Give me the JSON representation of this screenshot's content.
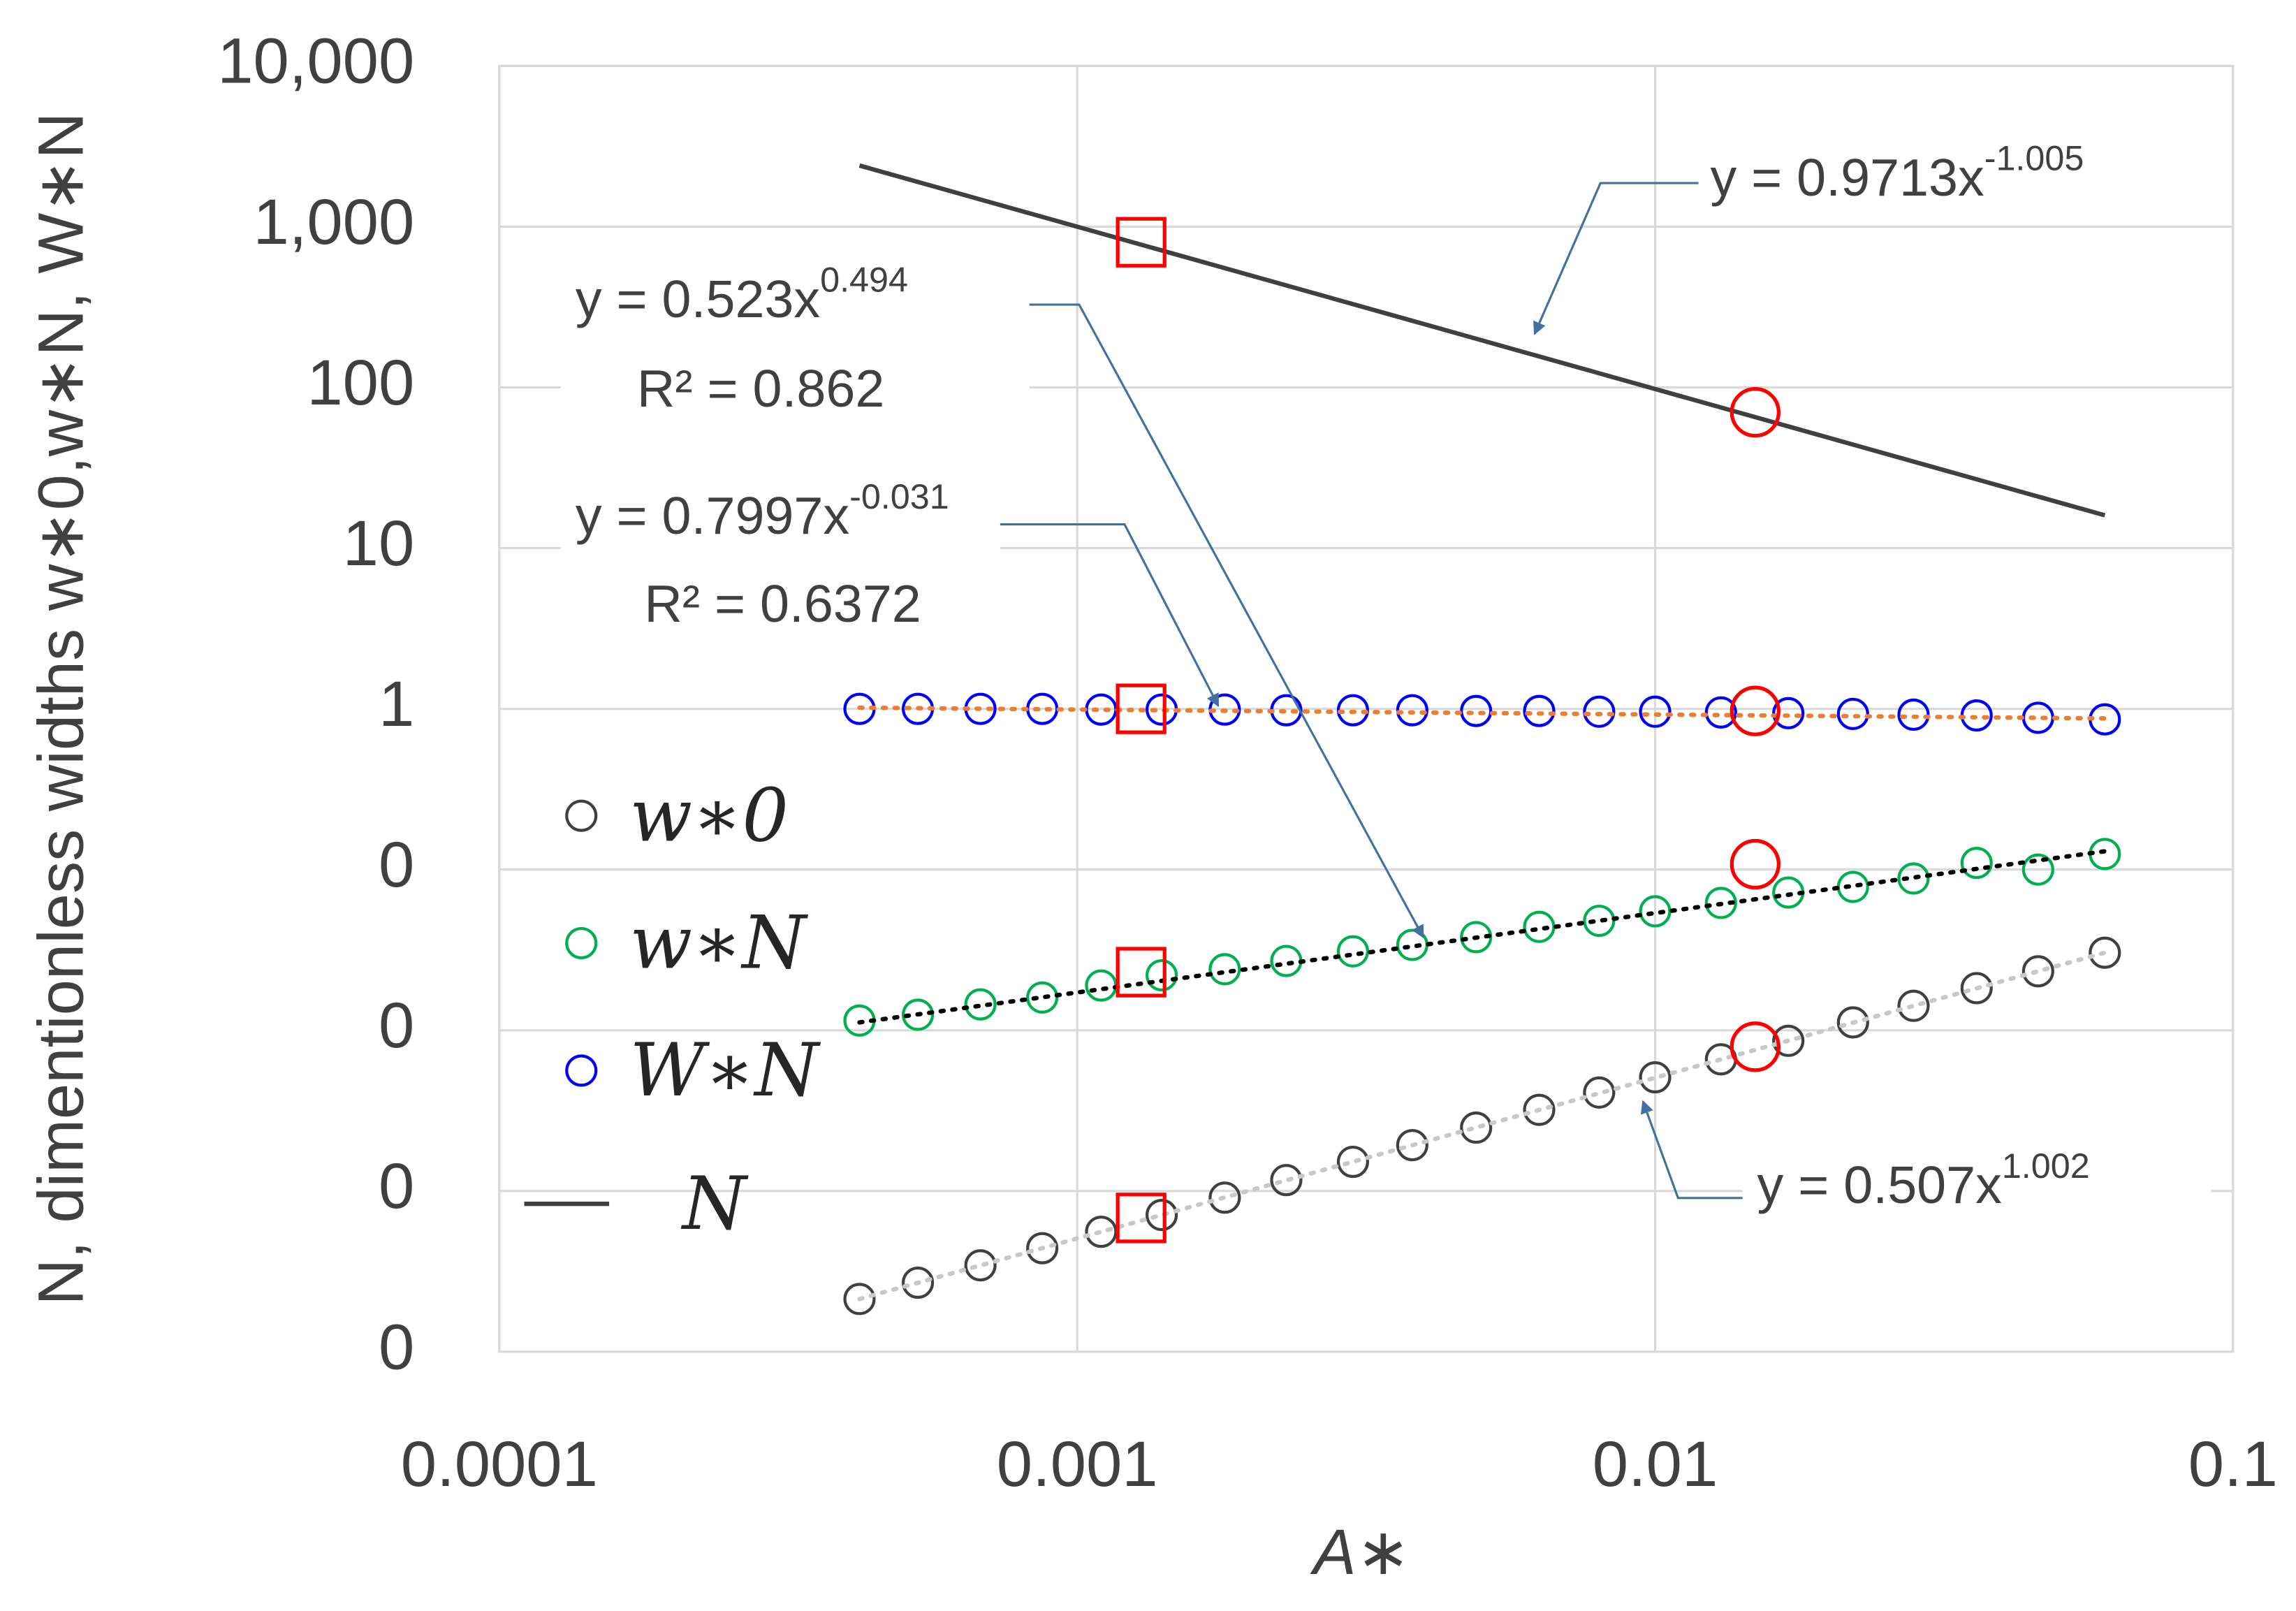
{
  "chart_data": {
    "type": "scatter",
    "x_label": "A∗",
    "y_label": "N, dimentionless widths w∗0,w∗N, W∗N",
    "xscale": "log",
    "yscale": "log",
    "grid": true,
    "legend": "left",
    "xlim": [
      0.0001,
      0.1
    ],
    "xticks": [
      0.0001,
      0.001,
      0.01,
      0.1
    ],
    "ylim": [
      0.0001,
      10000
    ],
    "yticks": [
      {
        "value": 0.0001,
        "label": "0"
      },
      {
        "value": 0.001,
        "label": "0"
      },
      {
        "value": 0.01,
        "label": "0"
      },
      {
        "value": 0.1,
        "label": "0"
      },
      1,
      10,
      100,
      {
        "value": 1000,
        "label": "1,000"
      },
      {
        "value": 10000,
        "label": "10,000"
      }
    ],
    "series": [
      {
        "name": "w∗0",
        "kind": "scatter",
        "color": "#404040",
        "x": [
          0.00042,
          0.00053,
          0.00068,
          0.00087,
          0.0011,
          0.0014,
          0.0018,
          0.0023,
          0.003,
          0.0038,
          0.0049,
          0.0063,
          0.008,
          0.01,
          0.013,
          0.017,
          0.022,
          0.028,
          0.036,
          0.046,
          0.06
        ],
        "values": [
          0.000213,
          0.000269,
          0.000345,
          0.000441,
          0.000558,
          0.00071,
          0.00091,
          0.00117,
          0.00152,
          0.00193,
          0.00248,
          0.0032,
          0.0041,
          0.0051,
          0.0066,
          0.0086,
          0.0112,
          0.0142,
          0.0183,
          0.0233,
          0.0304
        ]
      },
      {
        "name": "w∗N",
        "kind": "scatter",
        "color": "#00b050",
        "x": [
          0.00042,
          0.00053,
          0.00068,
          0.00087,
          0.0011,
          0.0014,
          0.0018,
          0.0023,
          0.003,
          0.0038,
          0.0049,
          0.0063,
          0.008,
          0.01,
          0.013,
          0.017,
          0.022,
          0.028,
          0.036,
          0.046,
          0.06
        ],
        "values": [
          0.0115,
          0.0125,
          0.0145,
          0.016,
          0.019,
          0.022,
          0.024,
          0.027,
          0.031,
          0.034,
          0.038,
          0.044,
          0.048,
          0.055,
          0.062,
          0.072,
          0.078,
          0.088,
          0.11,
          0.1,
          0.125
        ]
      },
      {
        "name": "W∗N",
        "kind": "scatter",
        "color": "#0000ff",
        "x": [
          0.00042,
          0.00053,
          0.00068,
          0.00087,
          0.0011,
          0.0014,
          0.0018,
          0.0023,
          0.003,
          0.0038,
          0.0049,
          0.0063,
          0.008,
          0.01,
          0.013,
          0.017,
          0.022,
          0.028,
          0.036,
          0.046,
          0.06
        ],
        "values": [
          1,
          1,
          1,
          1,
          0.99,
          0.99,
          0.99,
          0.98,
          0.98,
          0.98,
          0.97,
          0.97,
          0.96,
          0.96,
          0.95,
          0.94,
          0.93,
          0.92,
          0.91,
          0.88,
          0.86
        ]
      },
      {
        "name": "N",
        "kind": "line",
        "color": "#404040",
        "x": [
          0.00042,
          0.06
        ],
        "values": [
          2400,
          16
        ]
      }
    ],
    "trendlines": [
      {
        "series": 0,
        "color": "#c8c8c8",
        "x": [
          0.00042,
          0.06
        ],
        "values": [
          0.000213,
          0.0304
        ]
      },
      {
        "series": 1,
        "color": "#000000",
        "x": [
          0.00042,
          0.06
        ],
        "values": [
          0.0112,
          0.13
        ]
      },
      {
        "series": 2,
        "color": "#ed7d31",
        "x": [
          0.00042,
          0.06
        ],
        "values": [
          1.017,
          0.872
        ]
      }
    ],
    "highlights": [
      {
        "shape": "square",
        "color": "#ff0000",
        "x": [
          0.00129,
          0.00129,
          0.00129,
          0.00129
        ],
        "values": [
          800,
          1,
          0.023,
          0.00068
        ]
      },
      {
        "shape": "circle",
        "color": "#ff0000",
        "x": [
          0.0149,
          0.0149,
          0.0149,
          0.0149
        ],
        "values": [
          70,
          0.97,
          0.108,
          0.0079
        ]
      }
    ],
    "annotations": [
      {
        "text": "y = 0.9713x",
        "sup": "-1.005"
      },
      {
        "text": "y = 0.523x",
        "sup": "0.494",
        "r2": "R² = 0.862"
      },
      {
        "text": "y = 0.7997x",
        "sup": "-0.031",
        "r2": "R² = 0.6372"
      },
      {
        "text": "y = 0.507x",
        "sup": "1.002"
      }
    ]
  }
}
